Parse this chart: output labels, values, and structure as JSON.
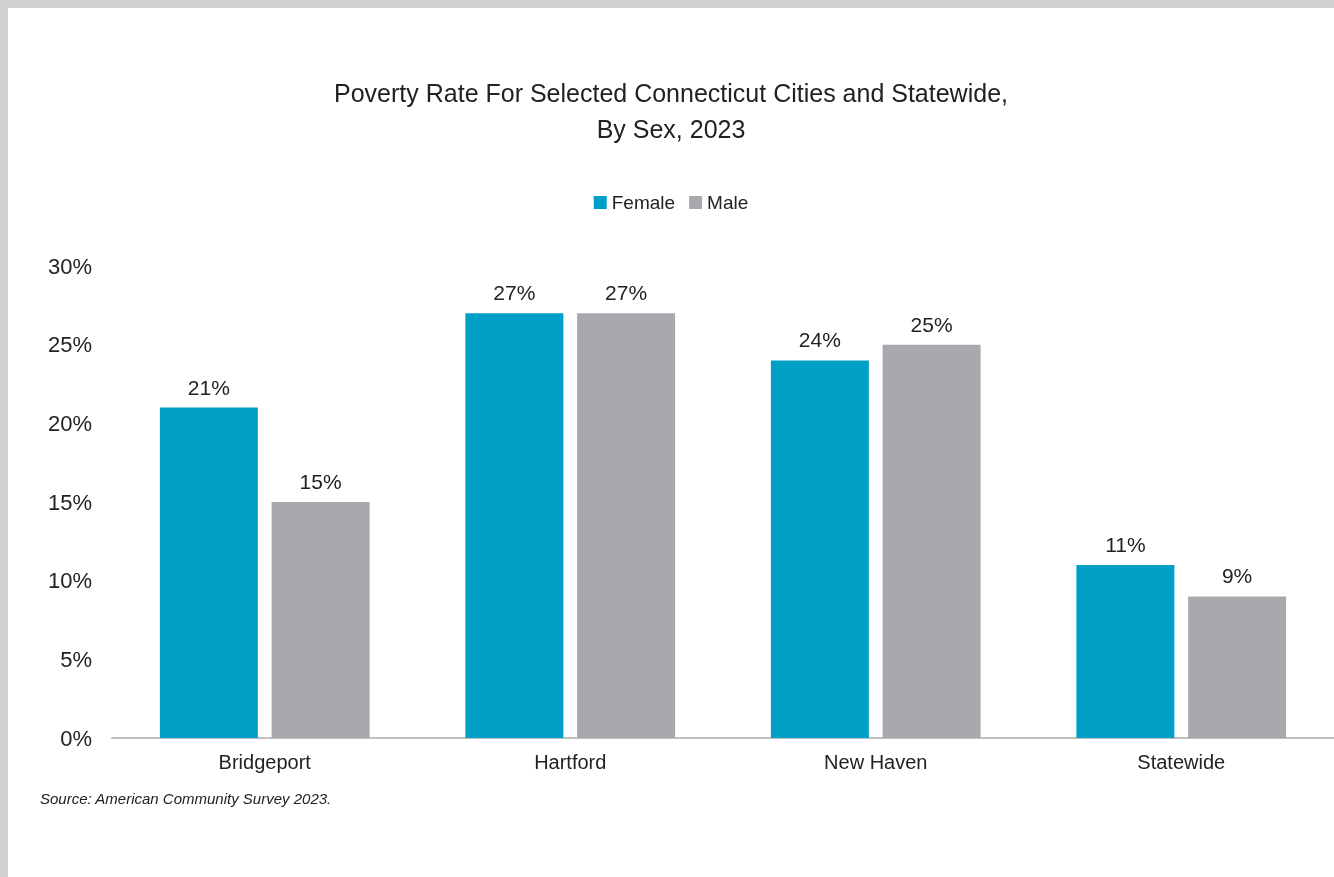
{
  "chart_data": {
    "type": "bar",
    "title": "Poverty Rate For Selected Connecticut Cities and Statewide,\nBy Sex, 2023",
    "categories": [
      "Bridgeport",
      "Hartford",
      "New Haven",
      "Statewide"
    ],
    "series": [
      {
        "name": "Female",
        "color": "#00a0c6",
        "values": [
          21,
          27,
          24,
          11
        ],
        "value_labels": [
          "21%",
          "27%",
          "24%",
          "11%"
        ]
      },
      {
        "name": "Male",
        "color": "#a7a9ac",
        "values": [
          15,
          27,
          25,
          9
        ],
        "value_labels": [
          "15%",
          "27%",
          "25%",
          "9%"
        ]
      }
    ],
    "ylim": [
      0,
      30
    ],
    "yticks": [
      {
        "value": 0,
        "label": "0%"
      },
      {
        "value": 5,
        "label": "5%"
      },
      {
        "value": 10,
        "label": "10%"
      },
      {
        "value": 15,
        "label": "15%"
      },
      {
        "value": 20,
        "label": "20%"
      },
      {
        "value": 25,
        "label": "25%"
      },
      {
        "value": 30,
        "label": "30%"
      }
    ],
    "grid": false,
    "legend": "top",
    "annotations": [
      "Source: American Community Survey 2023."
    ]
  }
}
